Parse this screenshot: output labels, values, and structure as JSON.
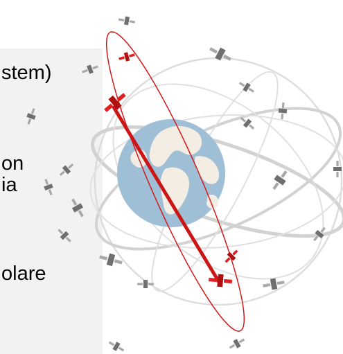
{
  "text_lines": [
    "stem)",
    "on",
    "ia",
    "olare"
  ],
  "colors": {
    "panel": "#f2f2f2",
    "orbit_gray": "#d0d0d0",
    "orbit_red": "#d11a1a",
    "ocean": "#9fbfd6",
    "land": "#f2ece2",
    "satellite_gray": "#8c8c8c",
    "satellite_red": "#e02020"
  },
  "icons": {
    "satellite": "satellite-icon",
    "earth": "earth-globe-icon"
  }
}
